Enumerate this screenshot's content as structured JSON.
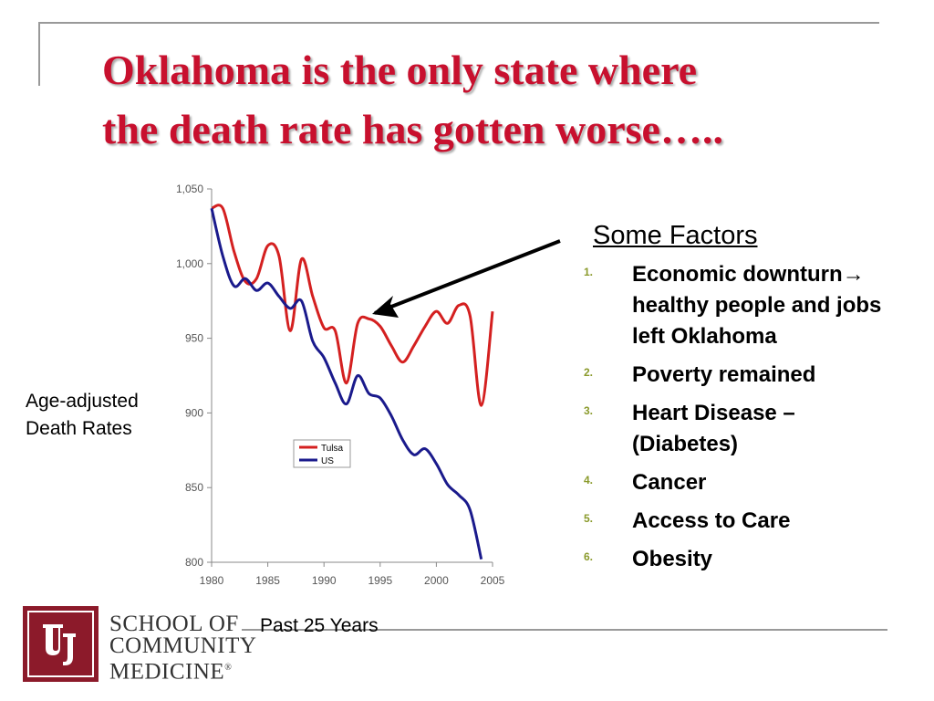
{
  "title": {
    "line1": "Oklahoma is the only state where",
    "line2": "the death rate has gotten worse….."
  },
  "chart_data": {
    "type": "line",
    "title": "",
    "xlabel": "Past 25 Years",
    "ylabel_lines": [
      "Age-adjusted",
      "Death Rates"
    ],
    "xlim": [
      1980,
      2005
    ],
    "ylim": [
      800,
      1050
    ],
    "x_ticks": [
      "1980",
      "1985",
      "1990",
      "1995",
      "2000",
      "2005"
    ],
    "y_ticks": [
      "800",
      "850",
      "900",
      "950",
      "1,000",
      "1,050"
    ],
    "legend": {
      "placement": "center",
      "entries": [
        "Tulsa",
        "US"
      ]
    },
    "series": [
      {
        "name": "Tulsa",
        "color": "#d42020",
        "x": [
          1980,
          1981,
          1982,
          1983,
          1984,
          1985,
          1986,
          1987,
          1988,
          1989,
          1990,
          1991,
          1992,
          1993,
          1994,
          1995,
          1996,
          1997,
          1998,
          1999,
          2000,
          2001,
          2002,
          2003,
          2004,
          2005
        ],
        "values": [
          1037,
          1037,
          1008,
          988,
          990,
          1012,
          1005,
          955,
          1003,
          978,
          957,
          955,
          920,
          960,
          963,
          958,
          945,
          934,
          945,
          958,
          968,
          960,
          972,
          965,
          905,
          968
        ]
      },
      {
        "name": "US",
        "color": "#1a1a8c",
        "x": [
          1980,
          1981,
          1982,
          1983,
          1984,
          1985,
          1986,
          1987,
          1988,
          1989,
          1990,
          1991,
          1992,
          1993,
          1994,
          1995,
          1996,
          1997,
          1998,
          1999,
          2000,
          2001,
          2002,
          2003,
          2004
        ],
        "values": [
          1037,
          1005,
          985,
          990,
          982,
          987,
          978,
          970,
          975,
          948,
          937,
          920,
          906,
          925,
          913,
          910,
          898,
          882,
          872,
          876,
          866,
          852,
          845,
          835,
          802
        ]
      }
    ]
  },
  "factors": {
    "heading": "Some Factors",
    "items": [
      {
        "num": "1.",
        "text": "Economic downturn→ healthy people and jobs left Oklahoma"
      },
      {
        "num": "2.",
        "text": "Poverty remained"
      },
      {
        "num": "3.",
        "text": "Heart Disease – (Diabetes)"
      },
      {
        "num": "4.",
        "text": "Cancer"
      },
      {
        "num": "5.",
        "text": "Access to Care"
      },
      {
        "num": "6.",
        "text": "Obesity"
      }
    ]
  },
  "logo": {
    "mark": "OU",
    "line1": "SCHOOL OF",
    "line2": "COMMUNITY",
    "line3": "MEDICINE",
    "registered": "®",
    "color": "#8c1a2a"
  }
}
